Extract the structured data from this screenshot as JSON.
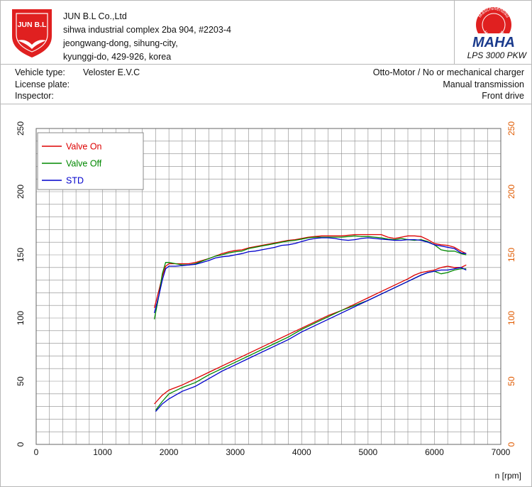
{
  "company": {
    "name": "JUN B.L Co.,Ltd",
    "address1": "sihwa industrial complex 2ba 904, #2203-4",
    "address2": "jeongwang-dong, sihung-city,",
    "address3": "kyunggi-do, 429-926, korea",
    "logo_text": "JUN B.L"
  },
  "maha": {
    "logo_text": "MAHA",
    "seal_top": "Maschinenbau",
    "seal_bottom": "Haldenwang",
    "model": "LPS 3000 PKW"
  },
  "vehicle": {
    "type_label": "Vehicle type:",
    "type_value": "Veloster E.V.C",
    "plate_label": "License plate:",
    "inspector_label": "Inspector:",
    "engine": "Otto-Motor / No or mechanical charger",
    "transmission": "Manual transmission",
    "drive": "Front drive"
  },
  "colors": {
    "valve_on": "#dd0000",
    "valve_off": "#008800",
    "std": "#0000cc",
    "right_axis": "#e05a00",
    "grid": "#8a8a8a",
    "brand_red": "#e02020",
    "maha_blue": "#1a3a8c"
  },
  "chart_data": {
    "type": "line",
    "xlabel": "n [rpm]",
    "xlim": [
      0,
      7000
    ],
    "x_ticks": [
      "0",
      "1000",
      "2000",
      "3000",
      "4000",
      "5000",
      "6000",
      "7000"
    ],
    "ylim": [
      0,
      250
    ],
    "y_ticks": [
      "0",
      "50",
      "100",
      "150",
      "200",
      "250"
    ],
    "y2_ticks": [
      "0",
      "50",
      "100",
      "150",
      "200",
      "250"
    ],
    "grid": true,
    "legend_position": "top-left",
    "series": [
      {
        "name": "Valve On",
        "color": "#dd0000",
        "group": "upper",
        "points": [
          [
            1780,
            108
          ],
          [
            1850,
            122
          ],
          [
            1900,
            133
          ],
          [
            1950,
            141
          ],
          [
            2000,
            143
          ],
          [
            2100,
            143
          ],
          [
            2200,
            143
          ],
          [
            2300,
            143
          ],
          [
            2400,
            144
          ],
          [
            2500,
            145.5
          ],
          [
            2600,
            147
          ],
          [
            2700,
            149
          ],
          [
            2800,
            151
          ],
          [
            2900,
            152.5
          ],
          [
            3000,
            153.5
          ],
          [
            3100,
            154
          ],
          [
            3200,
            155.5
          ],
          [
            3300,
            156.5
          ],
          [
            3400,
            157.5
          ],
          [
            3500,
            158.5
          ],
          [
            3600,
            159.5
          ],
          [
            3700,
            160.5
          ],
          [
            3800,
            161.5
          ],
          [
            3900,
            162
          ],
          [
            4000,
            163
          ],
          [
            4100,
            164
          ],
          [
            4200,
            164.5
          ],
          [
            4300,
            165
          ],
          [
            4400,
            165
          ],
          [
            4500,
            165
          ],
          [
            4600,
            165
          ],
          [
            4700,
            165.5
          ],
          [
            4800,
            166
          ],
          [
            4900,
            166
          ],
          [
            5000,
            166
          ],
          [
            5100,
            166
          ],
          [
            5200,
            166
          ],
          [
            5300,
            164
          ],
          [
            5400,
            163
          ],
          [
            5500,
            164
          ],
          [
            5600,
            165
          ],
          [
            5700,
            165
          ],
          [
            5800,
            164.5
          ],
          [
            5900,
            162
          ],
          [
            6000,
            159
          ],
          [
            6100,
            158
          ],
          [
            6200,
            157.5
          ],
          [
            6300,
            156
          ],
          [
            6400,
            153
          ],
          [
            6480,
            151
          ]
        ]
      },
      {
        "name": "Valve Off",
        "color": "#008800",
        "group": "upper",
        "points": [
          [
            1780,
            99
          ],
          [
            1850,
            118
          ],
          [
            1900,
            135
          ],
          [
            1950,
            144
          ],
          [
            2000,
            144
          ],
          [
            2100,
            143
          ],
          [
            2200,
            142
          ],
          [
            2300,
            142
          ],
          [
            2400,
            143
          ],
          [
            2500,
            145
          ],
          [
            2600,
            147
          ],
          [
            2700,
            149
          ],
          [
            2800,
            150
          ],
          [
            2900,
            151.5
          ],
          [
            3000,
            152.5
          ],
          [
            3100,
            153
          ],
          [
            3200,
            155
          ],
          [
            3300,
            156
          ],
          [
            3400,
            157
          ],
          [
            3500,
            158
          ],
          [
            3600,
            159
          ],
          [
            3700,
            160
          ],
          [
            3800,
            161
          ],
          [
            3900,
            161.5
          ],
          [
            4000,
            162.5
          ],
          [
            4100,
            163.5
          ],
          [
            4200,
            164
          ],
          [
            4300,
            164
          ],
          [
            4400,
            164
          ],
          [
            4500,
            164
          ],
          [
            4600,
            164
          ],
          [
            4700,
            164.5
          ],
          [
            4800,
            165
          ],
          [
            4900,
            164.5
          ],
          [
            5000,
            164.5
          ],
          [
            5100,
            164
          ],
          [
            5200,
            163.5
          ],
          [
            5300,
            162.5
          ],
          [
            5400,
            162
          ],
          [
            5500,
            163
          ],
          [
            5600,
            162
          ],
          [
            5700,
            161.5
          ],
          [
            5800,
            162
          ],
          [
            5900,
            160.5
          ],
          [
            6000,
            158
          ],
          [
            6100,
            154
          ],
          [
            6200,
            153
          ],
          [
            6300,
            153
          ],
          [
            6400,
            151
          ],
          [
            6480,
            150
          ]
        ]
      },
      {
        "name": "STD",
        "color": "#0000cc",
        "group": "upper",
        "points": [
          [
            1780,
            104
          ],
          [
            1850,
            118
          ],
          [
            1900,
            130
          ],
          [
            1950,
            139
          ],
          [
            2000,
            141
          ],
          [
            2100,
            141
          ],
          [
            2200,
            141.5
          ],
          [
            2300,
            142
          ],
          [
            2400,
            142.5
          ],
          [
            2500,
            144
          ],
          [
            2600,
            145.5
          ],
          [
            2700,
            147.5
          ],
          [
            2800,
            148.5
          ],
          [
            2900,
            149
          ],
          [
            3000,
            150
          ],
          [
            3100,
            151
          ],
          [
            3200,
            152.5
          ],
          [
            3300,
            153
          ],
          [
            3400,
            154
          ],
          [
            3500,
            155
          ],
          [
            3600,
            156
          ],
          [
            3700,
            157.5
          ],
          [
            3800,
            158
          ],
          [
            3900,
            159
          ],
          [
            4000,
            160.5
          ],
          [
            4100,
            162
          ],
          [
            4200,
            163
          ],
          [
            4300,
            163.5
          ],
          [
            4400,
            163.5
          ],
          [
            4500,
            163
          ],
          [
            4600,
            162
          ],
          [
            4700,
            161.5
          ],
          [
            4800,
            162
          ],
          [
            4900,
            163
          ],
          [
            5000,
            163.5
          ],
          [
            5100,
            163
          ],
          [
            5200,
            162.5
          ],
          [
            5300,
            162
          ],
          [
            5400,
            161.5
          ],
          [
            5500,
            161.5
          ],
          [
            5600,
            162
          ],
          [
            5700,
            162
          ],
          [
            5800,
            161.5
          ],
          [
            5900,
            160
          ],
          [
            6000,
            158
          ],
          [
            6100,
            157
          ],
          [
            6200,
            156
          ],
          [
            6300,
            155
          ],
          [
            6400,
            151.5
          ],
          [
            6480,
            151
          ]
        ]
      },
      {
        "name": "Valve On",
        "color": "#dd0000",
        "group": "lower",
        "points": [
          [
            1780,
            32
          ],
          [
            1900,
            39
          ],
          [
            2000,
            43
          ],
          [
            2200,
            47
          ],
          [
            2400,
            52
          ],
          [
            2600,
            57
          ],
          [
            2800,
            62
          ],
          [
            3000,
            67
          ],
          [
            3200,
            72
          ],
          [
            3400,
            77
          ],
          [
            3600,
            82
          ],
          [
            3800,
            87
          ],
          [
            4000,
            92
          ],
          [
            4200,
            97
          ],
          [
            4400,
            102
          ],
          [
            4600,
            106
          ],
          [
            4800,
            111
          ],
          [
            5000,
            116
          ],
          [
            5200,
            121
          ],
          [
            5400,
            126
          ],
          [
            5600,
            131
          ],
          [
            5700,
            134
          ],
          [
            5800,
            136
          ],
          [
            5900,
            137
          ],
          [
            6000,
            138
          ],
          [
            6100,
            140
          ],
          [
            6200,
            141
          ],
          [
            6300,
            140
          ],
          [
            6400,
            140
          ],
          [
            6480,
            142
          ]
        ]
      },
      {
        "name": "Valve Off",
        "color": "#008800",
        "group": "lower",
        "points": [
          [
            1800,
            27
          ],
          [
            1900,
            34
          ],
          [
            2000,
            40
          ],
          [
            2200,
            45
          ],
          [
            2400,
            49
          ],
          [
            2600,
            55
          ],
          [
            2800,
            60
          ],
          [
            3000,
            65
          ],
          [
            3200,
            70
          ],
          [
            3400,
            75
          ],
          [
            3600,
            80
          ],
          [
            3800,
            85
          ],
          [
            4000,
            91
          ],
          [
            4200,
            96
          ],
          [
            4400,
            101
          ],
          [
            4600,
            106
          ],
          [
            4800,
            110
          ],
          [
            5000,
            114
          ],
          [
            5200,
            119
          ],
          [
            5400,
            124
          ],
          [
            5600,
            129
          ],
          [
            5800,
            134
          ],
          [
            5900,
            136
          ],
          [
            6000,
            137
          ],
          [
            6100,
            135
          ],
          [
            6200,
            136
          ],
          [
            6300,
            138
          ],
          [
            6400,
            139
          ],
          [
            6480,
            139
          ]
        ]
      },
      {
        "name": "STD",
        "color": "#0000cc",
        "group": "lower",
        "points": [
          [
            1800,
            26
          ],
          [
            1900,
            32
          ],
          [
            2000,
            36
          ],
          [
            2200,
            42
          ],
          [
            2400,
            46
          ],
          [
            2600,
            52
          ],
          [
            2800,
            58
          ],
          [
            3000,
            63
          ],
          [
            3200,
            68
          ],
          [
            3400,
            73
          ],
          [
            3600,
            78
          ],
          [
            3800,
            83
          ],
          [
            4000,
            89
          ],
          [
            4200,
            94
          ],
          [
            4400,
            99
          ],
          [
            4600,
            104
          ],
          [
            4800,
            109
          ],
          [
            5000,
            114
          ],
          [
            5200,
            119
          ],
          [
            5400,
            124
          ],
          [
            5600,
            129
          ],
          [
            5800,
            134
          ],
          [
            5900,
            136
          ],
          [
            6000,
            137
          ],
          [
            6100,
            138
          ],
          [
            6200,
            138
          ],
          [
            6300,
            139
          ],
          [
            6400,
            140
          ],
          [
            6480,
            138
          ]
        ]
      }
    ]
  }
}
